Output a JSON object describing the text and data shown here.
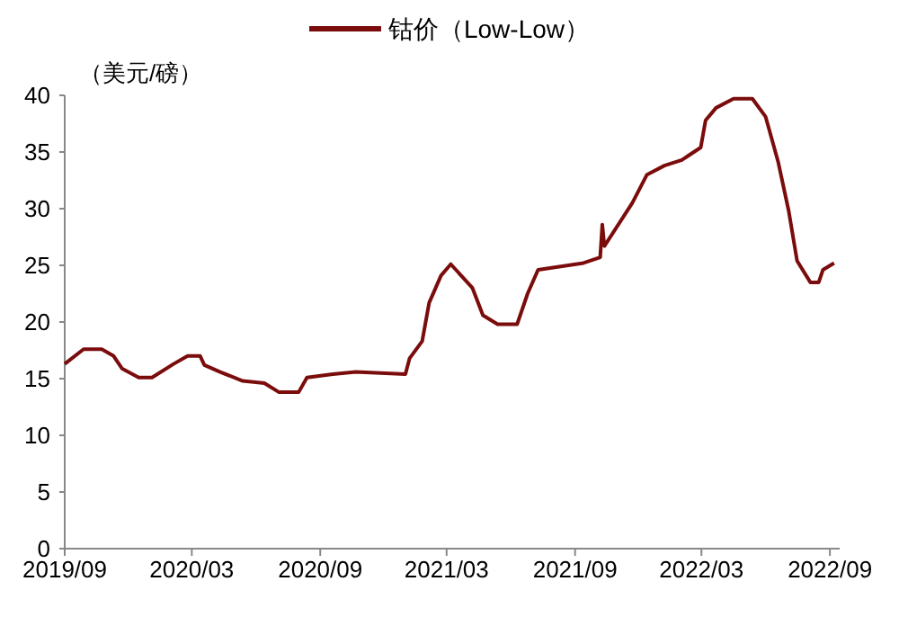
{
  "chart_data": {
    "type": "line",
    "ylabel": "（美元/磅）",
    "legend": "top",
    "x": [
      "2019-09-01",
      "2019-09-28",
      "2019-10-24",
      "2019-11-10",
      "2019-11-22",
      "2019-12-16",
      "2020-01-04",
      "2020-02-04",
      "2020-02-24",
      "2020-03-13",
      "2020-03-19",
      "2020-04-10",
      "2020-05-13",
      "2020-06-13",
      "2020-07-04",
      "2020-08-01",
      "2020-08-13",
      "2020-09-19",
      "2020-10-22",
      "2021-01-01",
      "2021-01-07",
      "2021-01-25",
      "2021-02-04",
      "2021-02-21",
      "2021-03-07",
      "2021-04-07",
      "2021-04-22",
      "2021-05-13",
      "2021-06-10",
      "2021-06-25",
      "2021-07-10",
      "2021-09-13",
      "2021-10-07",
      "2021-10-10",
      "2021-10-13",
      "2021-11-22",
      "2021-12-13",
      "2022-01-07",
      "2022-02-01",
      "2022-02-28",
      "2022-03-07",
      "2022-03-22",
      "2022-04-16",
      "2022-05-13",
      "2022-06-01",
      "2022-06-19",
      "2022-07-04",
      "2022-07-16",
      "2022-08-04",
      "2022-08-16",
      "2022-08-22",
      "2022-09-07"
    ],
    "series": [
      {
        "name": "钴价（Low-Low）",
        "color": "#7b0c0c",
        "values": [
          16.3,
          17.6,
          17.6,
          17.0,
          15.9,
          15.1,
          15.1,
          16.3,
          17.0,
          17.0,
          16.2,
          15.6,
          14.8,
          14.6,
          13.8,
          13.8,
          15.1,
          15.4,
          15.6,
          15.4,
          16.8,
          18.3,
          21.7,
          24.1,
          25.1,
          23.0,
          20.6,
          19.8,
          19.8,
          22.5,
          24.6,
          25.2,
          25.7,
          28.6,
          26.7,
          30.5,
          33.0,
          33.8,
          34.3,
          35.4,
          37.8,
          38.9,
          39.7,
          39.7,
          38.1,
          34.1,
          29.8,
          25.4,
          23.5,
          23.5,
          24.6,
          25.2
        ]
      }
    ],
    "xlim": [
      "2019-09-01",
      "2022-09-15"
    ],
    "xticks": [
      {
        "value": "2019-09-01",
        "label": "2019/09"
      },
      {
        "value": "2020-03-01",
        "label": "2020/03"
      },
      {
        "value": "2020-09-01",
        "label": "2020/09"
      },
      {
        "value": "2021-03-01",
        "label": "2021/03"
      },
      {
        "value": "2021-09-01",
        "label": "2021/09"
      },
      {
        "value": "2022-03-01",
        "label": "2022/03"
      },
      {
        "value": "2022-09-01",
        "label": "2022/09"
      }
    ],
    "ylim": [
      0,
      40
    ],
    "yticks": [
      0,
      5,
      10,
      15,
      20,
      25,
      30,
      35,
      40
    ],
    "grid": false,
    "marker": "none",
    "line_style": "solid"
  }
}
